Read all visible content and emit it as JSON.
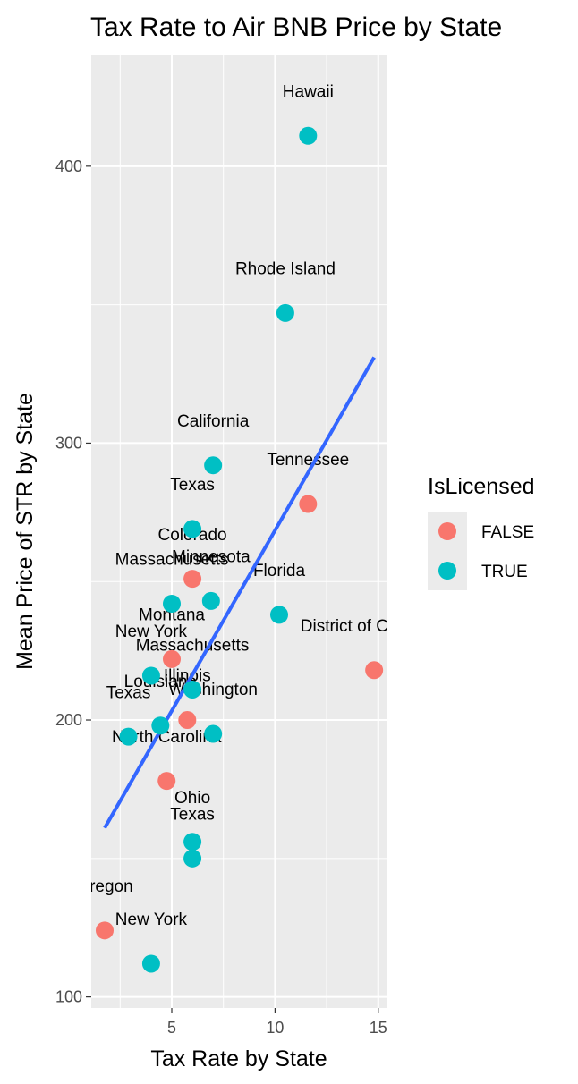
{
  "chart_data": {
    "type": "scatter",
    "title": "Tax Rate to Air BNB Price by State",
    "xlabel": "Tax Rate by State",
    "ylabel": "Mean Price of STR by State",
    "xlim": [
      1.1,
      15.4
    ],
    "ylim": [
      96,
      440
    ],
    "x_ticks": [
      5,
      10,
      15
    ],
    "x_minor_ticks": [
      2.5,
      7.5,
      12.5
    ],
    "y_ticks": [
      100,
      200,
      300,
      400
    ],
    "y_minor_ticks": [
      150,
      250,
      350
    ],
    "grid": true,
    "panel_background": "#ebebeb",
    "legend": {
      "title": "IsLicensed",
      "position": "right",
      "entries": [
        {
          "label": "FALSE",
          "color": "#f8766d"
        },
        {
          "label": "TRUE",
          "color": "#00bfc4"
        }
      ]
    },
    "trend_line": {
      "method": "linear",
      "color": "#3366ff",
      "x": [
        1.75,
        14.8
      ],
      "y": [
        161,
        331
      ]
    },
    "points": [
      {
        "x": 11.6,
        "y": 411,
        "licensed": "TRUE"
      },
      {
        "x": 10.5,
        "y": 347,
        "licensed": "TRUE"
      },
      {
        "x": 7.0,
        "y": 292,
        "licensed": "TRUE"
      },
      {
        "x": 11.6,
        "y": 278,
        "licensed": "FALSE"
      },
      {
        "x": 6.0,
        "y": 269,
        "licensed": "TRUE"
      },
      {
        "x": 6.0,
        "y": 251,
        "licensed": "FALSE"
      },
      {
        "x": 6.9,
        "y": 243,
        "licensed": "TRUE"
      },
      {
        "x": 5.0,
        "y": 242,
        "licensed": "TRUE"
      },
      {
        "x": 10.2,
        "y": 238,
        "licensed": "TRUE"
      },
      {
        "x": 5.0,
        "y": 222,
        "licensed": "FALSE"
      },
      {
        "x": 14.8,
        "y": 218,
        "licensed": "FALSE"
      },
      {
        "x": 4.0,
        "y": 216,
        "licensed": "TRUE"
      },
      {
        "x": 6.0,
        "y": 211,
        "licensed": "TRUE"
      },
      {
        "x": 5.75,
        "y": 200,
        "licensed": "FALSE"
      },
      {
        "x": 4.45,
        "y": 198,
        "licensed": "TRUE"
      },
      {
        "x": 2.9,
        "y": 194,
        "licensed": "TRUE"
      },
      {
        "x": 7.0,
        "y": 195,
        "licensed": "TRUE"
      },
      {
        "x": 4.75,
        "y": 178,
        "licensed": "FALSE"
      },
      {
        "x": 6.0,
        "y": 156,
        "licensed": "TRUE"
      },
      {
        "x": 6.0,
        "y": 150,
        "licensed": "TRUE"
      },
      {
        "x": 1.75,
        "y": 124,
        "licensed": "FALSE"
      },
      {
        "x": 4.0,
        "y": 112,
        "licensed": "TRUE"
      }
    ],
    "labels": [
      {
        "text": "Hawaii",
        "x": 11.6,
        "y": 425
      },
      {
        "text": "Rhode Island",
        "x": 10.5,
        "y": 361
      },
      {
        "text": "California",
        "x": 7.0,
        "y": 306
      },
      {
        "text": "Tennessee",
        "x": 11.6,
        "y": 292
      },
      {
        "text": "Texas",
        "x": 6.0,
        "y": 283
      },
      {
        "text": "Colorado",
        "x": 6.0,
        "y": 265
      },
      {
        "text": "Minnesota",
        "x": 6.9,
        "y": 257
      },
      {
        "text": "Massachusetts",
        "x": 5.0,
        "y": 256
      },
      {
        "text": "Florida",
        "x": 10.2,
        "y": 252
      },
      {
        "text": "Montana",
        "x": 5.0,
        "y": 236
      },
      {
        "text": "District of Columbia",
        "x": 14.8,
        "y": 232
      },
      {
        "text": "New York",
        "x": 4.0,
        "y": 230
      },
      {
        "text": "Massachusetts",
        "x": 6.0,
        "y": 225
      },
      {
        "text": "Louisiana",
        "x": 4.45,
        "y": 212
      },
      {
        "text": "Illinois",
        "x": 5.75,
        "y": 214
      },
      {
        "text": "Texas",
        "x": 2.9,
        "y": 208
      },
      {
        "text": "Washington",
        "x": 7.0,
        "y": 209
      },
      {
        "text": "North Carolina",
        "x": 4.75,
        "y": 192
      },
      {
        "text": "Ohio",
        "x": 6.0,
        "y": 170
      },
      {
        "text": "Texas",
        "x": 6.0,
        "y": 164
      },
      {
        "text": "Oregon",
        "x": 1.75,
        "y": 138
      },
      {
        "text": "New York",
        "x": 4.0,
        "y": 126
      }
    ]
  }
}
